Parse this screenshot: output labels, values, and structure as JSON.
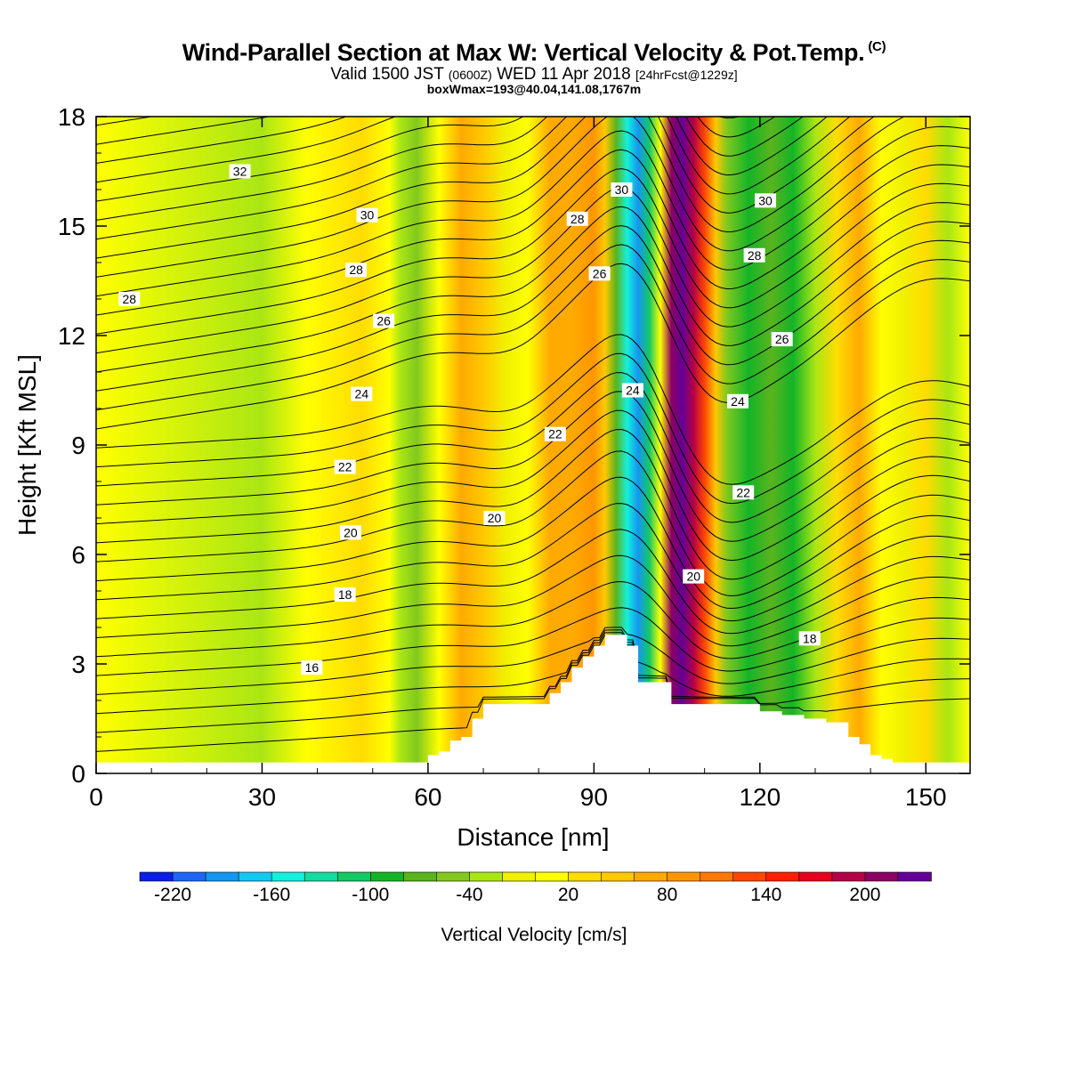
{
  "title": {
    "main": "Wind-Parallel Section at Max W: Vertical Velocity & Pot.Temp.",
    "copyright": "(C)",
    "valid_prefix": "Valid 1500 JST",
    "valid_utc": "(0600Z)",
    "valid_date": "WED 11 Apr 2018",
    "forecast": "[24hrFcst@1229z]",
    "box": "boxWmax=193@40.04,141.08,1767m"
  },
  "chart_data": {
    "type": "heatmap",
    "xlabel": "Distance [nm]",
    "ylabel": "Height [Kft MSL]",
    "xlim": [
      0,
      158
    ],
    "ylim": [
      0,
      18
    ],
    "xticks": [
      0,
      30,
      60,
      90,
      120,
      150
    ],
    "yticks": [
      0,
      3,
      6,
      9,
      12,
      15,
      18
    ],
    "colorbar": {
      "label": "Vertical Velocity [cm/s]",
      "ticks": [
        -220,
        -160,
        -100,
        -40,
        20,
        80,
        140,
        200
      ],
      "levels": [
        -240,
        -220,
        -200,
        -180,
        -160,
        -140,
        -120,
        -100,
        -80,
        -60,
        -40,
        -20,
        0,
        20,
        40,
        60,
        80,
        100,
        120,
        140,
        160,
        180,
        200,
        220,
        240
      ],
      "colors": [
        "#0a1ee6",
        "#1e64f5",
        "#1496f0",
        "#14c8f0",
        "#14f0dc",
        "#14dca0",
        "#14c864",
        "#14b428",
        "#5ab41e",
        "#82c81e",
        "#aae614",
        "#f0f000",
        "#ffff00",
        "#ffdc00",
        "#ffc800",
        "#ffaa00",
        "#ff9600",
        "#ff7800",
        "#ff4600",
        "#ff1e00",
        "#e6001e",
        "#b40046",
        "#8c0064",
        "#640096"
      ]
    },
    "velocity_columns": {
      "x": [
        0,
        30,
        38,
        48,
        53,
        55,
        58,
        62,
        66,
        70,
        74,
        78,
        82,
        86,
        90,
        92,
        94,
        96,
        98,
        100,
        102,
        104,
        106,
        108,
        110,
        112,
        114,
        118,
        122,
        126,
        130,
        134,
        138,
        142,
        146,
        150,
        154,
        158
      ],
      "value": [
        10,
        -30,
        10,
        25,
        10,
        -35,
        -55,
        10,
        60,
        45,
        -10,
        15,
        60,
        75,
        80,
        40,
        -80,
        -150,
        -200,
        -120,
        15,
        200,
        220,
        180,
        120,
        40,
        -50,
        -90,
        -70,
        -95,
        -40,
        20,
        60,
        10,
        -20,
        20,
        -30,
        0
      ]
    },
    "terrain": {
      "x": [
        60,
        62,
        64,
        66,
        68,
        70,
        72,
        74,
        80,
        82,
        84,
        86,
        88,
        90,
        92,
        94,
        96,
        98,
        100,
        102,
        104,
        106,
        108,
        112,
        116,
        120,
        124,
        128,
        132,
        136,
        138,
        140,
        142,
        144
      ],
      "height": [
        0.5,
        0.6,
        0.9,
        1.0,
        1.5,
        1.9,
        1.9,
        1.9,
        1.9,
        2.2,
        2.5,
        2.9,
        3.2,
        3.5,
        3.8,
        3.8,
        3.5,
        2.5,
        2.5,
        2.5,
        1.9,
        1.9,
        1.9,
        1.9,
        1.9,
        1.7,
        1.6,
        1.5,
        1.4,
        1.0,
        0.8,
        0.5,
        0.4,
        0.3
      ]
    },
    "isentropes": {
      "levels": [
        16,
        18,
        20,
        22,
        24,
        26,
        28,
        30,
        32
      ],
      "labels": [
        {
          "text": "32",
          "x": 26,
          "y": 16.5
        },
        {
          "text": "30",
          "x": 49,
          "y": 15.3
        },
        {
          "text": "28",
          "x": 6,
          "y": 13.0
        },
        {
          "text": "28",
          "x": 47,
          "y": 13.8
        },
        {
          "text": "26",
          "x": 52,
          "y": 12.4
        },
        {
          "text": "24",
          "x": 48,
          "y": 10.4
        },
        {
          "text": "22",
          "x": 45,
          "y": 8.4
        },
        {
          "text": "20",
          "x": 46,
          "y": 6.6
        },
        {
          "text": "18",
          "x": 45,
          "y": 4.9
        },
        {
          "text": "16",
          "x": 39,
          "y": 2.9
        },
        {
          "text": "28",
          "x": 87,
          "y": 15.2
        },
        {
          "text": "26",
          "x": 91,
          "y": 13.7
        },
        {
          "text": "22",
          "x": 83,
          "y": 9.3
        },
        {
          "text": "20",
          "x": 72,
          "y": 7.0
        },
        {
          "text": "30",
          "x": 95,
          "y": 16.0
        },
        {
          "text": "24",
          "x": 97,
          "y": 10.5
        },
        {
          "text": "20",
          "x": 108,
          "y": 5.4
        },
        {
          "text": "30",
          "x": 121,
          "y": 15.7
        },
        {
          "text": "28",
          "x": 119,
          "y": 14.2
        },
        {
          "text": "26",
          "x": 124,
          "y": 11.9
        },
        {
          "text": "24",
          "x": 116,
          "y": 10.2
        },
        {
          "text": "22",
          "x": 117,
          "y": 7.7
        },
        {
          "text": "18",
          "x": 129,
          "y": 3.7
        }
      ]
    }
  }
}
